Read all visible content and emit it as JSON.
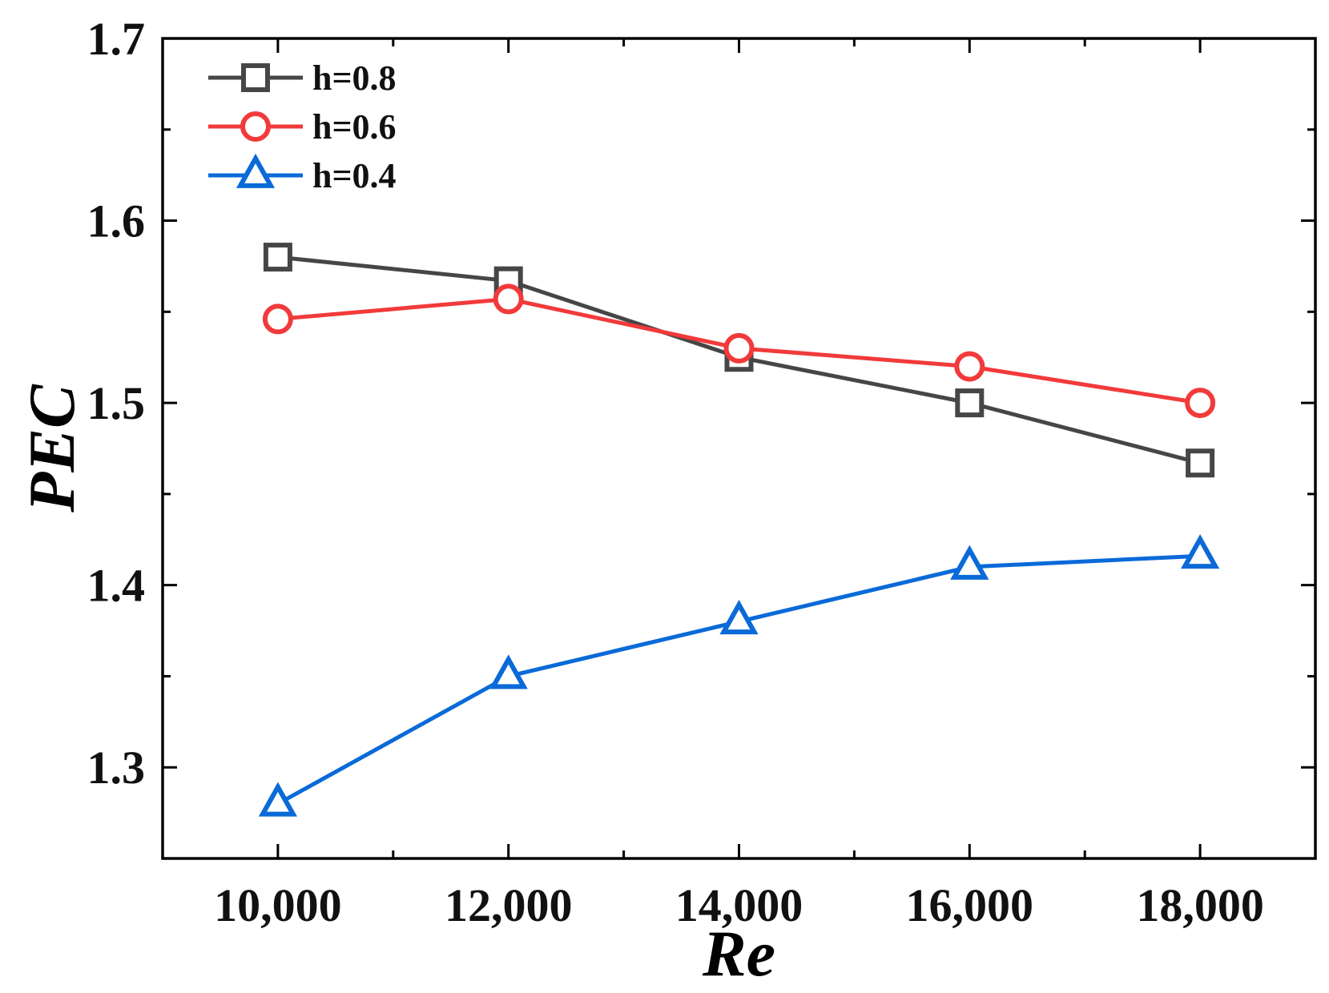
{
  "chart_data": {
    "type": "line",
    "title": "",
    "xlabel": "Re",
    "ylabel": "PEC",
    "x": [
      10000,
      12000,
      14000,
      16000,
      18000
    ],
    "xlim": [
      9000,
      19000
    ],
    "ylim": [
      1.25,
      1.7
    ],
    "x_ticks": [
      10000,
      12000,
      14000,
      16000,
      18000
    ],
    "x_tick_labels": [
      "10,000",
      "12,000",
      "14,000",
      "16,000",
      "18,000"
    ],
    "x_minor_ticks": [
      11000,
      13000,
      15000,
      17000
    ],
    "y_ticks": [
      1.3,
      1.4,
      1.5,
      1.6,
      1.7
    ],
    "y_tick_labels": [
      "1.3",
      "1.4",
      "1.5",
      "1.6",
      "1.7"
    ],
    "y_minor_ticks": [
      1.35,
      1.45,
      1.55,
      1.65
    ],
    "grid": false,
    "legend_position": "top-left",
    "series": [
      {
        "name": "h=0.8",
        "color": "#464646",
        "marker": "square",
        "values": [
          1.58,
          1.567,
          1.525,
          1.5,
          1.467
        ]
      },
      {
        "name": "h=0.6",
        "color": "#f23a3a",
        "marker": "circle",
        "values": [
          1.546,
          1.557,
          1.53,
          1.52,
          1.5
        ]
      },
      {
        "name": "h=0.4",
        "color": "#0a6ad8",
        "marker": "triangle",
        "values": [
          1.28,
          1.35,
          1.38,
          1.41,
          1.416
        ]
      }
    ]
  }
}
